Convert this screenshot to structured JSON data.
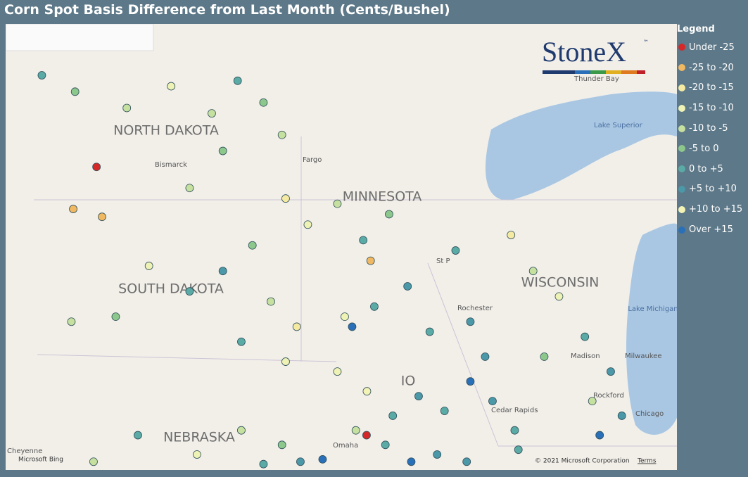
{
  "header": {
    "title": "Corn Spot Basis Difference from Last Month (Cents/Bushel)"
  },
  "legend": {
    "title": "Legend",
    "items": [
      {
        "label": "Under -25",
        "color": "#d62828"
      },
      {
        "label": "-25 to -20",
        "color": "#f0b860"
      },
      {
        "label": "-20 to -15",
        "color": "#f5eaa2"
      },
      {
        "label": "-15 to -10",
        "color": "#eef2b4"
      },
      {
        "label": "-10 to -5",
        "color": "#c6e0a0"
      },
      {
        "label": "-5 to 0",
        "color": "#8cc78c"
      },
      {
        "label": "0 to +5",
        "color": "#5aaaa6"
      },
      {
        "label": "+5 to +10",
        "color": "#4b98a8"
      },
      {
        "label": "+10 to +15",
        "color": "#f3f3b6"
      },
      {
        "label": "Over +15",
        "color": "#2a70b8"
      }
    ]
  },
  "logo": {
    "name": "StoneX",
    "mark": "™"
  },
  "map": {
    "states": [
      "NORTH DAKOTA",
      "SOUTH DAKOTA",
      "MINNESOTA",
      "WISCONSIN",
      "IO",
      "NEBRASKA"
    ],
    "cities": [
      "Bismarck",
      "Fargo",
      "St P",
      "Rochester",
      "Madison",
      "Milwaukee",
      "Chicago",
      "Rockford",
      "Cedar Rapids",
      "Omaha",
      "Thunder Bay",
      "Cheyenne"
    ],
    "water": [
      "Lake Superior",
      "Lake Michigan"
    ],
    "attribution": {
      "provider": "Microsoft Bing",
      "copyright": "© 2021 Microsoft Corporation",
      "terms": "Terms"
    }
  },
  "points": [
    [
      -102.32,
      46.9,
      0
    ],
    [
      -95.01,
      41.6,
      0
    ],
    [
      -102.95,
      46.1,
      1
    ],
    [
      -102.17,
      45.95,
      1
    ],
    [
      -94.9,
      45.1,
      1
    ],
    [
      -103.8,
      48.6,
      6
    ],
    [
      -102.9,
      48.3,
      5
    ],
    [
      -101.5,
      48.0,
      4
    ],
    [
      -100.3,
      48.4,
      3
    ],
    [
      -99.2,
      47.9,
      4
    ],
    [
      -98.5,
      48.5,
      6
    ],
    [
      -97.8,
      48.1,
      5
    ],
    [
      -97.3,
      47.5,
      4
    ],
    [
      -98.9,
      47.2,
      5
    ],
    [
      -99.8,
      46.5,
      4
    ],
    [
      -97.2,
      46.3,
      2
    ],
    [
      -100.9,
      45.0,
      3
    ],
    [
      -99.8,
      44.5,
      6
    ],
    [
      -98.9,
      44.9,
      7
    ],
    [
      -98.1,
      45.4,
      5
    ],
    [
      -97.6,
      44.3,
      4
    ],
    [
      -96.9,
      43.8,
      2
    ],
    [
      -97.2,
      43.1,
      3
    ],
    [
      -98.4,
      43.5,
      6
    ],
    [
      -101.8,
      44.0,
      5
    ],
    [
      -103.0,
      43.9,
      4
    ],
    [
      -96.6,
      45.8,
      3
    ],
    [
      -95.8,
      46.2,
      4
    ],
    [
      -95.1,
      45.5,
      6
    ],
    [
      -94.4,
      46.0,
      5
    ],
    [
      -93.9,
      44.6,
      7
    ],
    [
      -94.8,
      44.2,
      6
    ],
    [
      -95.6,
      44.0,
      3
    ],
    [
      -92.6,
      45.3,
      6
    ],
    [
      -92.2,
      43.9,
      7
    ],
    [
      -93.3,
      43.7,
      6
    ],
    [
      -95.4,
      43.8,
      9
    ],
    [
      -95.8,
      42.9,
      3
    ],
    [
      -95.0,
      42.5,
      8
    ],
    [
      -94.3,
      42.0,
      6
    ],
    [
      -93.6,
      42.4,
      7
    ],
    [
      -92.9,
      42.1,
      6
    ],
    [
      -92.2,
      42.7,
      9
    ],
    [
      -91.6,
      42.3,
      7
    ],
    [
      -91.0,
      41.7,
      6
    ],
    [
      -93.1,
      41.2,
      7
    ],
    [
      -94.5,
      41.4,
      6
    ],
    [
      -95.3,
      41.7,
      4
    ],
    [
      -93.8,
      41.05,
      9
    ],
    [
      -92.3,
      41.05,
      7
    ],
    [
      -90.9,
      41.3,
      6
    ],
    [
      -91.8,
      43.2,
      7
    ],
    [
      -96.2,
      41.1,
      9
    ],
    [
      -97.3,
      41.4,
      5
    ],
    [
      -98.4,
      41.7,
      4
    ],
    [
      -99.6,
      41.2,
      3
    ],
    [
      -101.2,
      41.6,
      6
    ],
    [
      -102.4,
      41.05,
      4
    ],
    [
      -97.8,
      41.0,
      6
    ],
    [
      -96.8,
      41.05,
      7
    ],
    [
      -90.5,
      44.9,
      4
    ],
    [
      -89.8,
      44.4,
      3
    ],
    [
      -89.1,
      43.6,
      6
    ],
    [
      -90.2,
      43.2,
      5
    ],
    [
      -88.4,
      42.9,
      7
    ],
    [
      -88.9,
      42.3,
      4
    ],
    [
      -91.1,
      45.6,
      2
    ],
    [
      -88.1,
      42.0,
      7
    ],
    [
      -88.7,
      41.6,
      9
    ]
  ]
}
